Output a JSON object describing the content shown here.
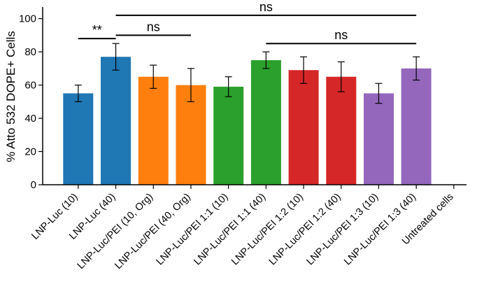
{
  "chart_data": {
    "type": "bar",
    "title": "",
    "xlabel": "",
    "ylabel": "% Atto 532 DOPE+ Cells",
    "ylim": [
      0,
      107
    ],
    "yticks": [
      0,
      20,
      40,
      60,
      80,
      100
    ],
    "grid": false,
    "categories": [
      "LNP-Luc (10)",
      "LNP-Luc (40)",
      "LNP-Luc/PEI (10, Org)",
      "LNP-Luc/PEI (40, Org)",
      "LNP-Luc/PEI 1:1 (10)",
      "LNP-Luc/PEI 1:1 (40)",
      "LNP-Luc/PEI 1:2 (10)",
      "LNP-Luc/PEI 1:2 (40)",
      "LNP-Luc/PEI 1:3 (10)",
      "LNP-Luc/PEI 1:3 (40)",
      "Untreated cells"
    ],
    "values": [
      55,
      77,
      65,
      60,
      59,
      75,
      69,
      65,
      55,
      70,
      0
    ],
    "errors": [
      5,
      8,
      7,
      10,
      6,
      5,
      8,
      9,
      6,
      7,
      0
    ],
    "colors": [
      "#1f77b4",
      "#1f77b4",
      "#ff7f0e",
      "#ff7f0e",
      "#2ca02c",
      "#2ca02c",
      "#d62728",
      "#d62728",
      "#9467bd",
      "#9467bd",
      "#ffffff"
    ],
    "significance": [
      {
        "from": 0,
        "to": 1,
        "label": "**",
        "y": 88
      },
      {
        "from": 1,
        "to": 3,
        "label": "ns",
        "y": 90
      },
      {
        "from": 1,
        "to": 9,
        "label": "ns",
        "y": 102
      },
      {
        "from": 5,
        "to": 9,
        "label": "ns",
        "y": 85
      }
    ]
  }
}
